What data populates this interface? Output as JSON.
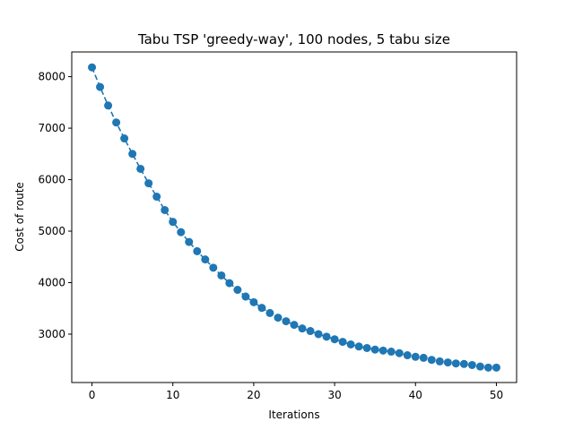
{
  "chart_data": {
    "type": "line",
    "title": "Tabu TSP 'greedy-way', 100 nodes, 5 tabu size",
    "xlabel": "Iterations",
    "ylabel": "Cost of route",
    "xlim": [
      -2.5,
      52.5
    ],
    "ylim": [
      2060,
      8480
    ],
    "xticks": [
      0,
      10,
      20,
      30,
      40,
      50
    ],
    "yticks": [
      3000,
      4000,
      5000,
      6000,
      7000,
      8000
    ],
    "grid": false,
    "legend": "none",
    "line_style": "dashed",
    "marker": "circle",
    "color": "#1f77b4",
    "series": [
      {
        "x": [
          0,
          1,
          2,
          3,
          4,
          5,
          6,
          7,
          8,
          9,
          10,
          11,
          12,
          13,
          14,
          15,
          16,
          17,
          18,
          19,
          20,
          21,
          22,
          23,
          24,
          25,
          26,
          27,
          28,
          29,
          30,
          31,
          32,
          33,
          34,
          35,
          36,
          37,
          38,
          39,
          40,
          41,
          42,
          43,
          44,
          45,
          46,
          47,
          48,
          49,
          50
        ],
        "values": [
          8180,
          7800,
          7440,
          7110,
          6800,
          6500,
          6210,
          5930,
          5670,
          5410,
          5180,
          4980,
          4790,
          4610,
          4450,
          4290,
          4140,
          3990,
          3860,
          3730,
          3620,
          3510,
          3410,
          3320,
          3250,
          3180,
          3110,
          3060,
          3000,
          2950,
          2900,
          2850,
          2800,
          2760,
          2730,
          2700,
          2680,
          2660,
          2630,
          2590,
          2560,
          2540,
          2500,
          2470,
          2450,
          2430,
          2420,
          2400,
          2370,
          2350,
          2350
        ]
      }
    ]
  }
}
